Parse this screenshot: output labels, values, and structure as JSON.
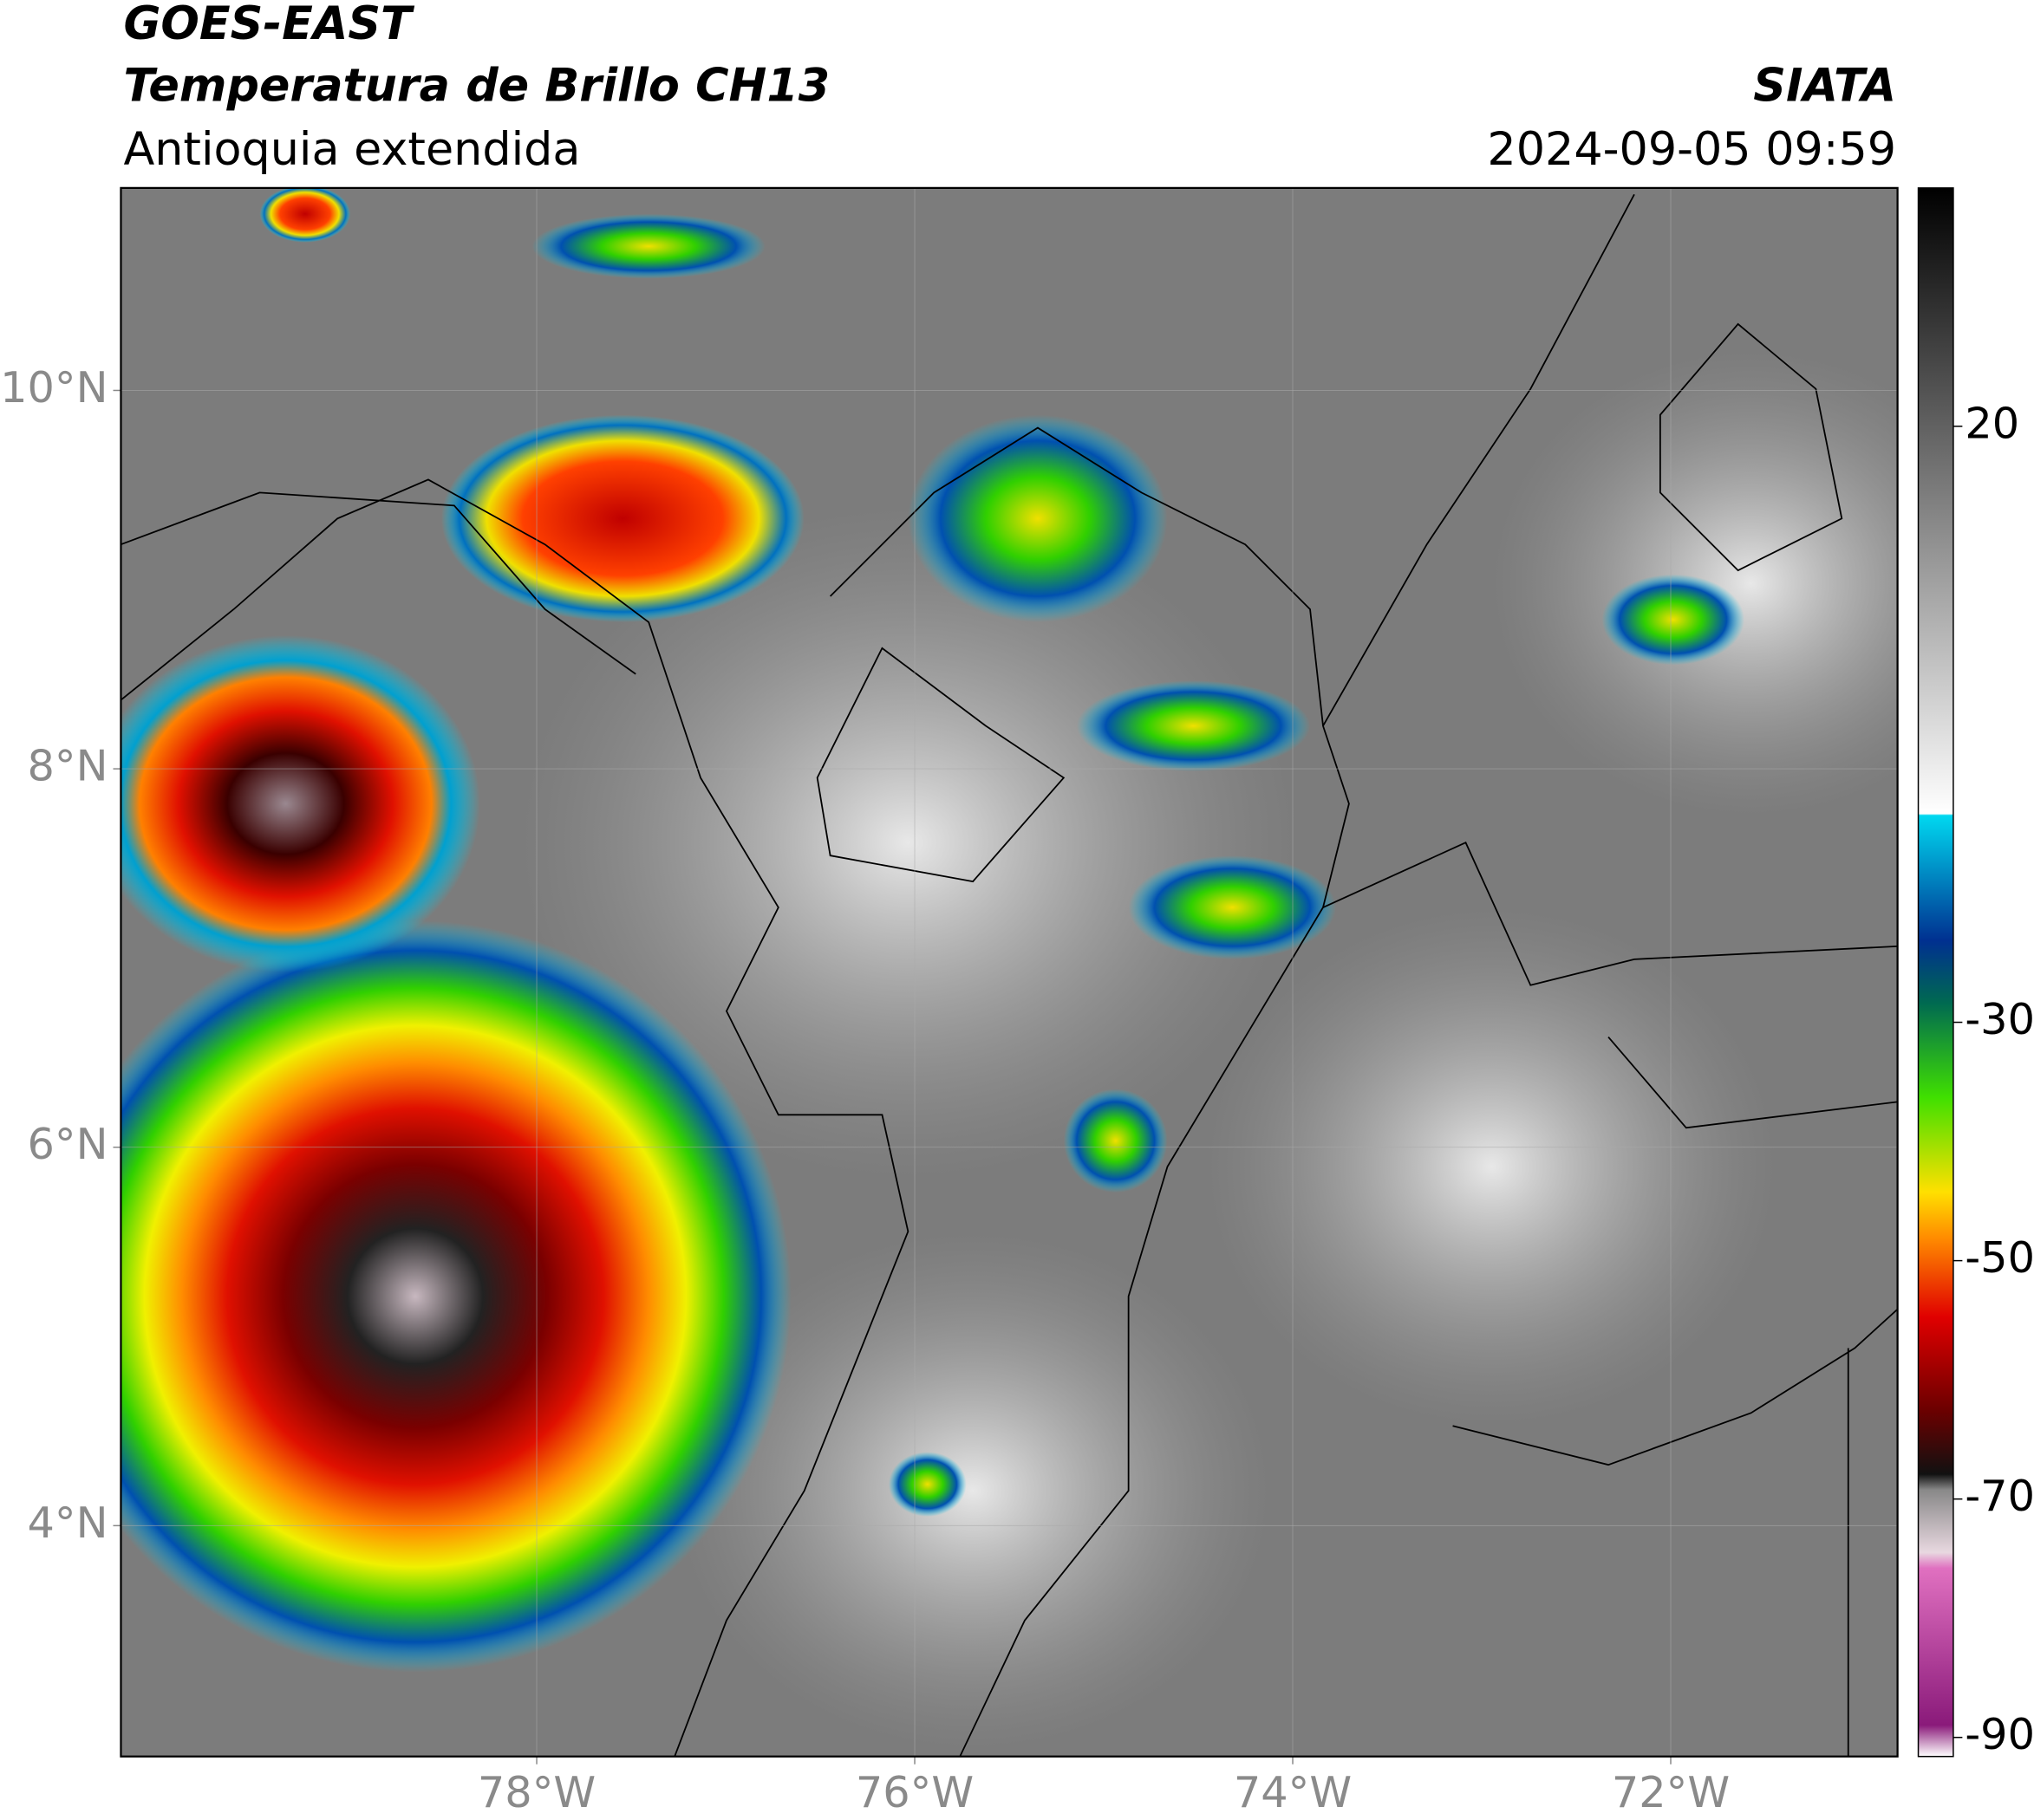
{
  "header": {
    "title": "GOES-EAST",
    "subtitle": "Temperatura de Brillo CH13",
    "region": "Antioquia extendida",
    "source": "SIATA",
    "timestamp": "2024-09-05 09:59"
  },
  "map": {
    "lonlim": [
      -80.2,
      -70.8
    ],
    "latlim": [
      2.78,
      11.07
    ],
    "lat_ticks": [
      {
        "value": 4,
        "label": "4°N"
      },
      {
        "value": 6,
        "label": "6°N"
      },
      {
        "value": 8,
        "label": "8°N"
      },
      {
        "value": 10,
        "label": "10°N"
      }
    ],
    "lon_ticks": [
      {
        "value": -78,
        "label": "78°W"
      },
      {
        "value": -76,
        "label": "76°W"
      },
      {
        "value": -74,
        "label": "74°W"
      },
      {
        "value": -72,
        "label": "72°W"
      }
    ]
  },
  "colorbar": {
    "range": [
      -91.6,
      40
    ],
    "ticks": [
      20,
      -30,
      -50,
      -70,
      -90
    ]
  }
}
